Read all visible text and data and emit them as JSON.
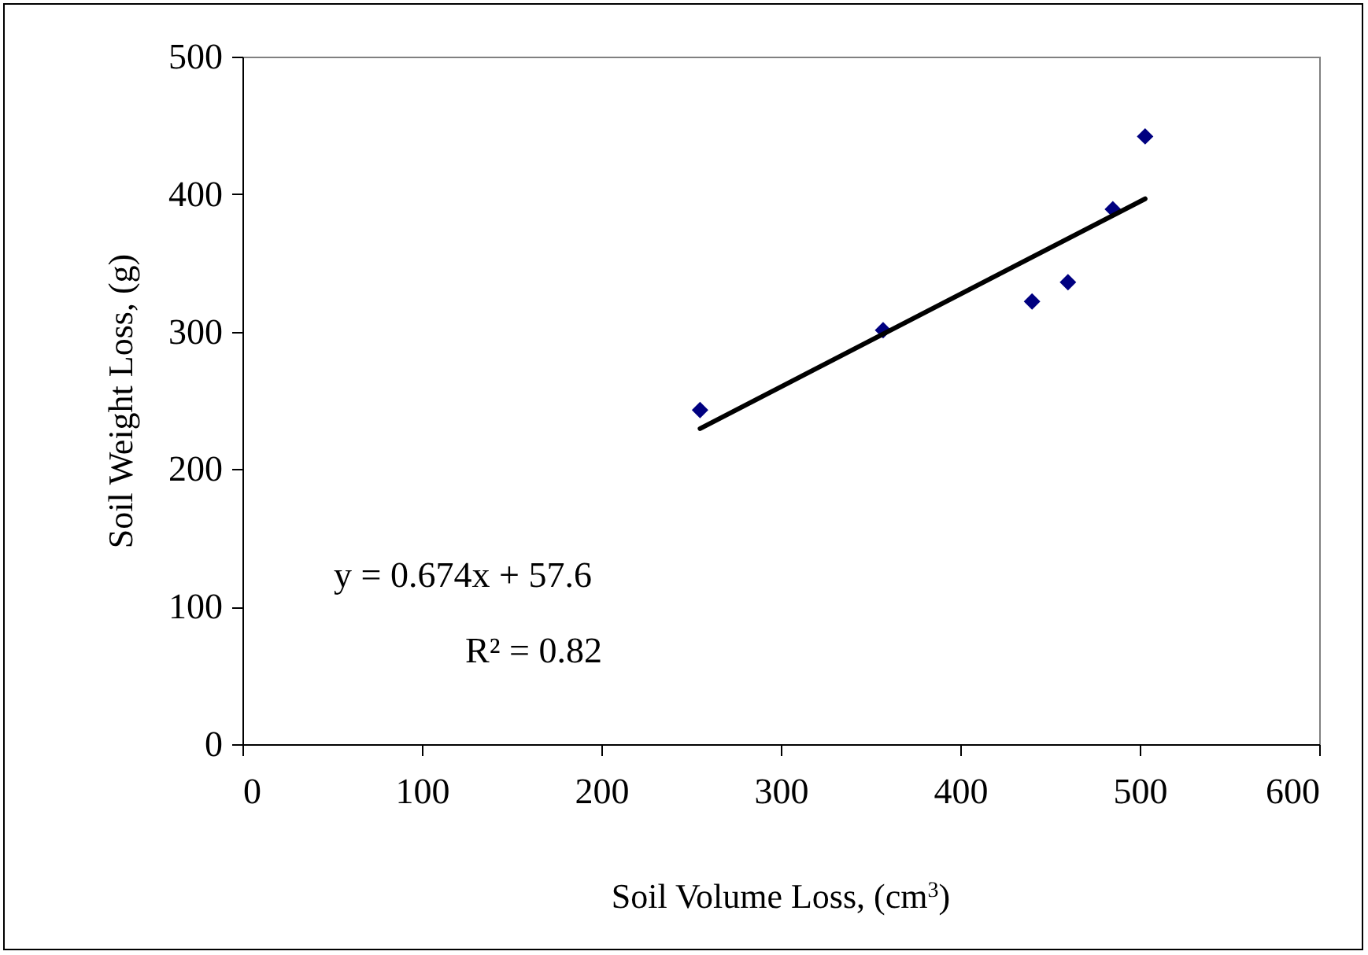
{
  "chart_data": {
    "type": "scatter",
    "xlabel": "Soil Volume Loss, (cm$^{3}$)",
    "ylabel": "Soil Weight Loss, (g)",
    "series": [
      {
        "color": "#000080",
        "marker": "diamond",
        "x": [
          255,
          357,
          440,
          460,
          485,
          503
        ],
        "values": [
          243,
          301,
          322,
          336,
          389,
          442
        ]
      },
      {
        "type": "line",
        "color": "#000000",
        "line_style": "solid",
        "x": [
          255,
          503
        ],
        "values": [
          229.5,
          396.6
        ]
      }
    ],
    "xlim": [
      0,
      600
    ],
    "xticks": [
      0,
      100,
      200,
      300,
      400,
      500,
      600
    ],
    "ylim": [
      0,
      500
    ],
    "yticks": [
      0,
      100,
      200,
      300,
      400,
      500
    ],
    "annotations": [
      "y = 0.674x + 57.6",
      "R² = 0.82"
    ]
  }
}
